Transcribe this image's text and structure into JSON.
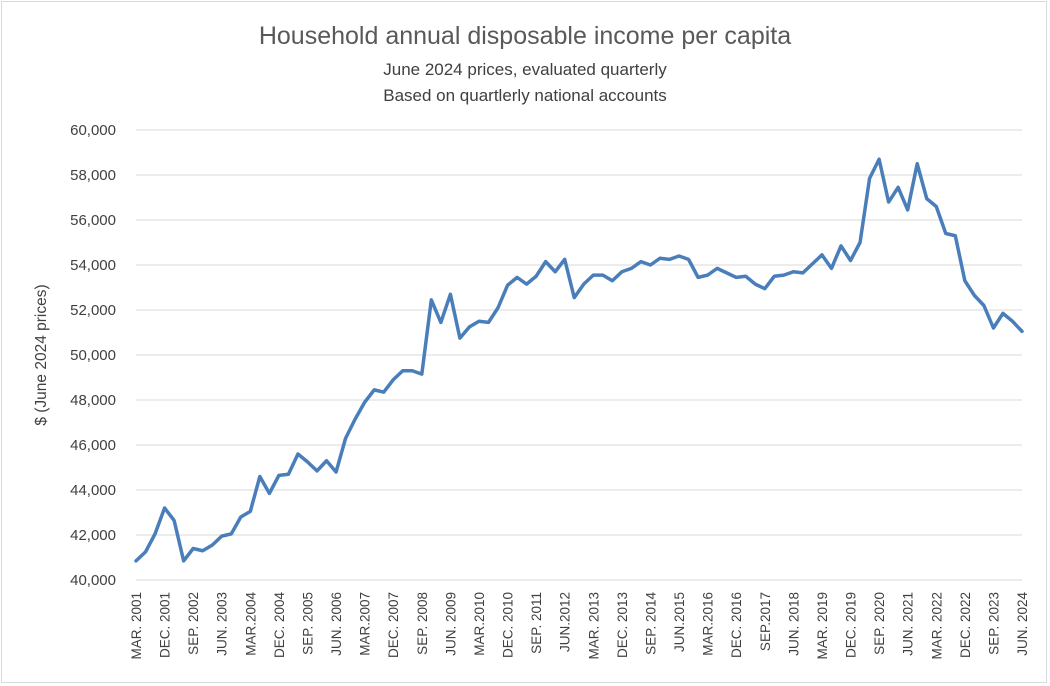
{
  "chart_data": {
    "type": "line",
    "title": "Household annual disposable income per capita",
    "subtitle_lines": [
      "June 2024 prices, evaluated quarterly",
      "Based on quartlerly national accounts"
    ],
    "xlabel": "",
    "ylabel": "$ (June 2024 prices)",
    "ylim": [
      40000,
      60000
    ],
    "yticks": [
      40000,
      42000,
      44000,
      46000,
      48000,
      50000,
      52000,
      54000,
      56000,
      58000,
      60000
    ],
    "ytick_labels": [
      "40,000",
      "42,000",
      "44,000",
      "46,000",
      "48,000",
      "50,000",
      "52,000",
      "54,000",
      "56,000",
      "58,000",
      "60,000"
    ],
    "grid": true,
    "legend": "none",
    "series_color": "#4a7ebb",
    "xtick_labels": [
      {
        "quarter_index": 0,
        "label": "MAR. 2001"
      },
      {
        "quarter_index": 3,
        "label": "DEC. 2001"
      },
      {
        "quarter_index": 6,
        "label": "SEP. 2002"
      },
      {
        "quarter_index": 9,
        "label": "JUN. 2003"
      },
      {
        "quarter_index": 12,
        "label": "MAR.2004"
      },
      {
        "quarter_index": 15,
        "label": "DEC. 2004"
      },
      {
        "quarter_index": 18,
        "label": "SEP. 2005"
      },
      {
        "quarter_index": 21,
        "label": "JUN. 2006"
      },
      {
        "quarter_index": 24,
        "label": "MAR.2007"
      },
      {
        "quarter_index": 27,
        "label": "DEC. 2007"
      },
      {
        "quarter_index": 30,
        "label": "SEP. 2008"
      },
      {
        "quarter_index": 33,
        "label": "JUN. 2009"
      },
      {
        "quarter_index": 36,
        "label": "MAR.2010"
      },
      {
        "quarter_index": 39,
        "label": "DEC. 2010"
      },
      {
        "quarter_index": 42,
        "label": "SEP. 2011"
      },
      {
        "quarter_index": 45,
        "label": "JUN.2012"
      },
      {
        "quarter_index": 48,
        "label": "MAR. 2013"
      },
      {
        "quarter_index": 51,
        "label": "DEC. 2013"
      },
      {
        "quarter_index": 54,
        "label": "SEP. 2014"
      },
      {
        "quarter_index": 57,
        "label": "JUN.2015"
      },
      {
        "quarter_index": 60,
        "label": "MAR.2016"
      },
      {
        "quarter_index": 63,
        "label": "DEC. 2016"
      },
      {
        "quarter_index": 66,
        "label": "SEP.2017"
      },
      {
        "quarter_index": 69,
        "label": "JUN. 2018"
      },
      {
        "quarter_index": 72,
        "label": "MAR. 2019"
      },
      {
        "quarter_index": 75,
        "label": "DEC. 2019"
      },
      {
        "quarter_index": 78,
        "label": "SEP. 2020"
      },
      {
        "quarter_index": 81,
        "label": "JUN. 2021"
      },
      {
        "quarter_index": 84,
        "label": "MAR. 2022"
      },
      {
        "quarter_index": 87,
        "label": "DEC. 2022"
      },
      {
        "quarter_index": 90,
        "label": "SEP. 2023"
      },
      {
        "quarter_index": 93,
        "label": "JUN. 2024"
      }
    ],
    "series": [
      {
        "values": [
          40850,
          41250,
          42050,
          43200,
          42650,
          40850,
          41400,
          41300,
          41550,
          41950,
          42050,
          42800,
          43050,
          44600,
          43850,
          44650,
          44700,
          45600,
          45250,
          44850,
          45300,
          44800,
          46300,
          47150,
          47900,
          48450,
          48350,
          48900,
          49300,
          49300,
          49150,
          52450,
          51450,
          52700,
          50750,
          51250,
          51500,
          51450,
          52100,
          53100,
          53450,
          53150,
          53500,
          54150,
          53700,
          54250,
          52550,
          53150,
          53550,
          53550,
          53300,
          53700,
          53850,
          54150,
          54000,
          54300,
          54250,
          54400,
          54250,
          53450,
          53550,
          53850,
          53650,
          53450,
          53500,
          53150,
          52950,
          53500,
          53550,
          53700,
          53650,
          54050,
          54450,
          53850,
          54850,
          54200,
          55000,
          57850,
          58700,
          56800,
          57450,
          56450,
          58500,
          56950,
          56600,
          55400,
          55300,
          53300,
          52650,
          52200,
          51200,
          51850,
          51500,
          51050
        ]
      }
    ]
  }
}
